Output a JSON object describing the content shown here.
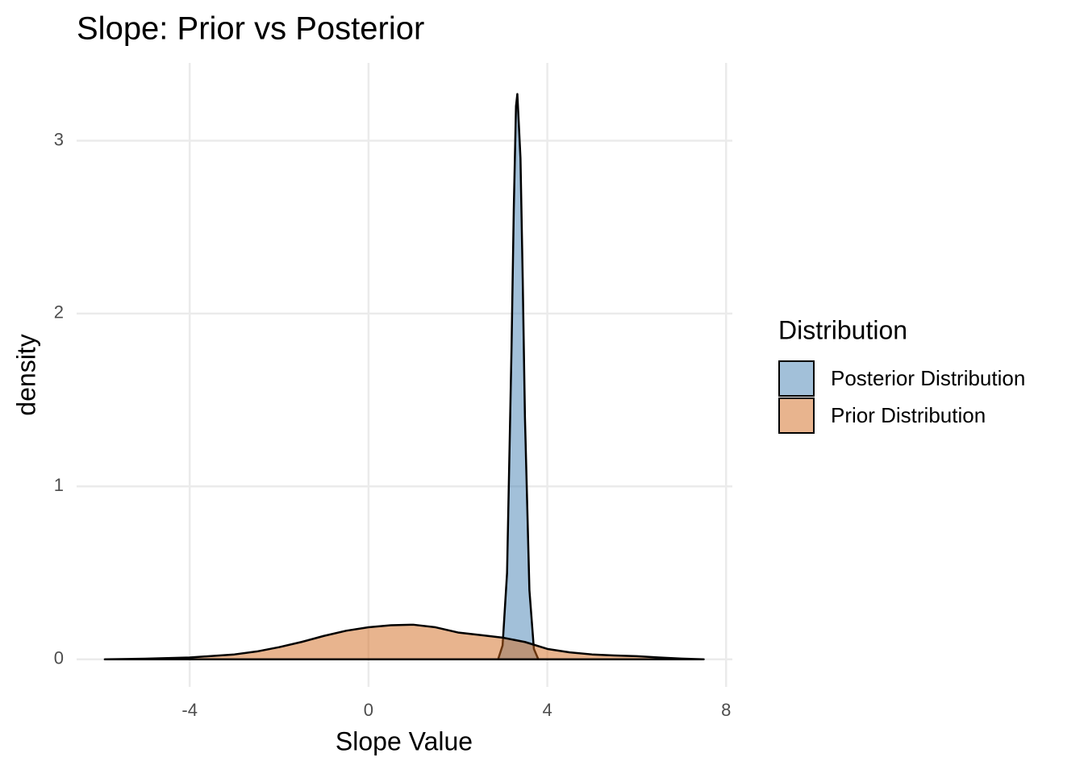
{
  "chart_data": {
    "type": "density",
    "title": "Slope: Prior vs Posterior",
    "x_label": "Slope Value",
    "y_label": "density",
    "legend_title": "Distribution",
    "legend_position": "right",
    "grid": true,
    "xlim": [
      -6.53,
      8.14
    ],
    "ylim": [
      -0.16,
      3.45
    ],
    "xticks": [
      -4,
      0,
      4,
      8
    ],
    "yticks": [
      0,
      1,
      2,
      3
    ],
    "series": [
      {
        "name": "Posterior Distribution",
        "color": "#4682b4",
        "x": [
          2.9,
          3.0,
          3.1,
          3.2,
          3.25,
          3.3,
          3.33,
          3.4,
          3.45,
          3.5,
          3.6,
          3.7,
          3.8
        ],
        "values": [
          0,
          0.08,
          0.5,
          1.8,
          2.6,
          3.2,
          3.27,
          2.9,
          2.2,
          1.4,
          0.4,
          0.06,
          0
        ]
      },
      {
        "name": "Prior Distribution",
        "color": "#d2691e",
        "x": [
          -5.9,
          -5,
          -4,
          -3,
          -2.5,
          -2,
          -1.5,
          -1,
          -0.5,
          0,
          0.5,
          1,
          1.5,
          2,
          2.5,
          3,
          3.5,
          4,
          4.5,
          5,
          5.5,
          6,
          6.5,
          7,
          7.5
        ],
        "values": [
          0,
          0.003,
          0.01,
          0.028,
          0.045,
          0.07,
          0.1,
          0.135,
          0.165,
          0.185,
          0.197,
          0.2,
          0.185,
          0.155,
          0.14,
          0.125,
          0.1,
          0.06,
          0.04,
          0.028,
          0.022,
          0.018,
          0.01,
          0.004,
          0
        ]
      }
    ]
  }
}
